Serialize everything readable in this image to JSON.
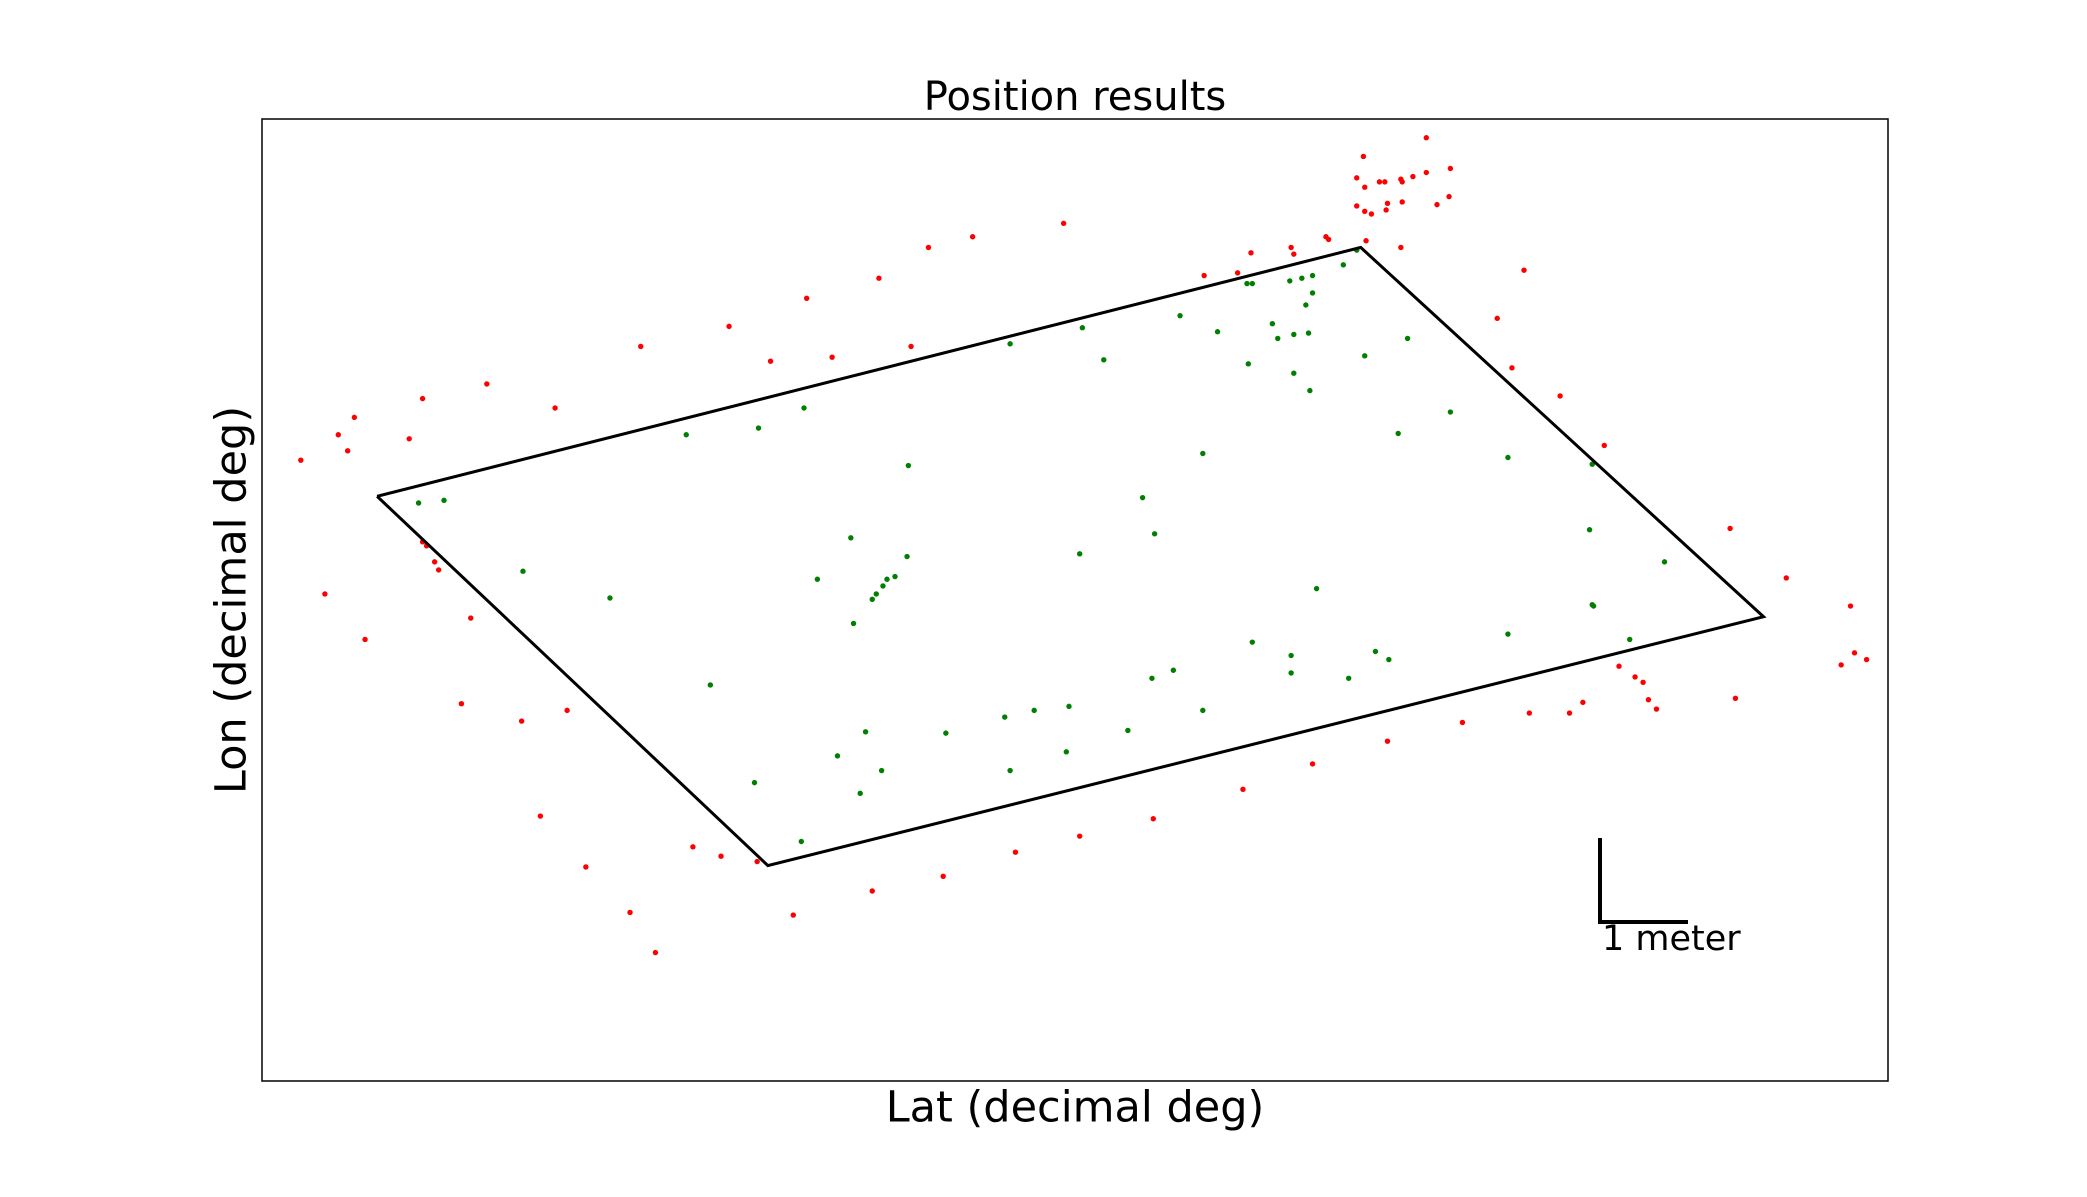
{
  "chart_data": {
    "type": "scatter",
    "title": "Position results",
    "x_label": "Lat (decimal deg)",
    "y_label": "Lon (decimal deg)",
    "xlim": [
      0,
      1215
    ],
    "ylim": [
      0,
      719
    ],
    "annotation": "1 meter",
    "series": [
      {
        "mode": "markers",
        "color": "#ff0000",
        "x": [
          870,
          823,
          818,
          835,
          839,
          851,
          852,
          870,
          888,
          860,
          818,
          824,
          829,
          840,
          841,
          852,
          878,
          887,
          824,
          851,
          825,
          769,
          771,
          795,
          797,
          739,
          729,
          704,
          599,
          531,
          498,
          461,
          407,
          349,
          283,
          380,
          426,
          485,
          168,
          120,
          69,
          57,
          110,
          64,
          29,
          219,
          943,
          923,
          934,
          970,
          1003,
          1097,
          1139,
          1187,
          1190,
          1199,
          1180,
          1014,
          1026,
          1032,
          1036,
          1042,
          1101,
          987,
          977,
          947,
          897,
          841,
          785,
          733,
          666,
          611,
          563,
          509,
          456,
          397,
          370,
          343,
          322,
          294,
          275,
          242,
          208,
          194,
          228,
          149,
          156,
          77,
          47,
          120,
          123,
          129,
          132
        ],
        "values": [
          705,
          691,
          675,
          672,
          672,
          674,
          672,
          679,
          682,
          676,
          654,
          650,
          648,
          651,
          656,
          657,
          655,
          661,
          668,
          623,
          628,
          623,
          618,
          631,
          629,
          619,
          604,
          602,
          641,
          631,
          623,
          600,
          585,
          564,
          549,
          538,
          541,
          549,
          521,
          510,
          496,
          483,
          480,
          471,
          464,
          503,
          606,
          570,
          533,
          512,
          475,
          413,
          376,
          355,
          320,
          315,
          311,
          310,
          302,
          298,
          285,
          278,
          286,
          283,
          275,
          275,
          268,
          254,
          237,
          218,
          196,
          183,
          171,
          153,
          142,
          124,
          164,
          168,
          175,
          96,
          126,
          160,
          198,
          269,
          277,
          282,
          346,
          330,
          364,
          403,
          400,
          388,
          382
        ]
      },
      {
        "mode": "markers",
        "color": "#008000",
        "x": [
          117,
          136,
          195,
          260,
          317,
          371,
          405,
          483,
          440,
          415,
          482,
          473,
          467,
          464,
          459,
          456,
          442,
          335,
          368,
          403,
          447,
          463,
          430,
          451,
          511,
          555,
          577,
          603,
          559,
          601,
          647,
          665,
          681,
          703,
          611,
          667,
          658,
          703,
          559,
          613,
          629,
          686,
          714,
          736,
          740,
          755,
          759,
          768,
          777,
          785,
          785,
          780,
          782,
          771,
          737,
          771,
          783,
          808,
          818,
          824,
          856,
          849,
          888,
          931,
          994,
          992,
          1048,
          994,
          995,
          1022,
          931,
          842,
          832,
          812,
          769,
          769,
          740,
          788
        ],
        "values": [
          432,
          434,
          381,
          361,
          483,
          488,
          503,
          460,
          406,
          375,
          392,
          377,
          375,
          370,
          364,
          360,
          342,
          296,
          223,
          179,
          215,
          232,
          243,
          261,
          260,
          272,
          277,
          280,
          232,
          246,
          262,
          301,
          307,
          277,
          394,
          409,
          436,
          469,
          551,
          563,
          539,
          572,
          560,
          596,
          596,
          566,
          555,
          598,
          600,
          602,
          589,
          580,
          559,
          558,
          536,
          529,
          516,
          610,
          621,
          542,
          555,
          484,
          500,
          466,
          461,
          412,
          388,
          356,
          355,
          330,
          334,
          315,
          321,
          301,
          318,
          305,
          328,
          368
        ]
      },
      {
        "mode": "lines",
        "color": "#000000",
        "x": [
          86,
          821,
          1122,
          378,
          86
        ],
        "values": [
          437,
          623,
          347,
          161,
          437
        ]
      }
    ]
  }
}
